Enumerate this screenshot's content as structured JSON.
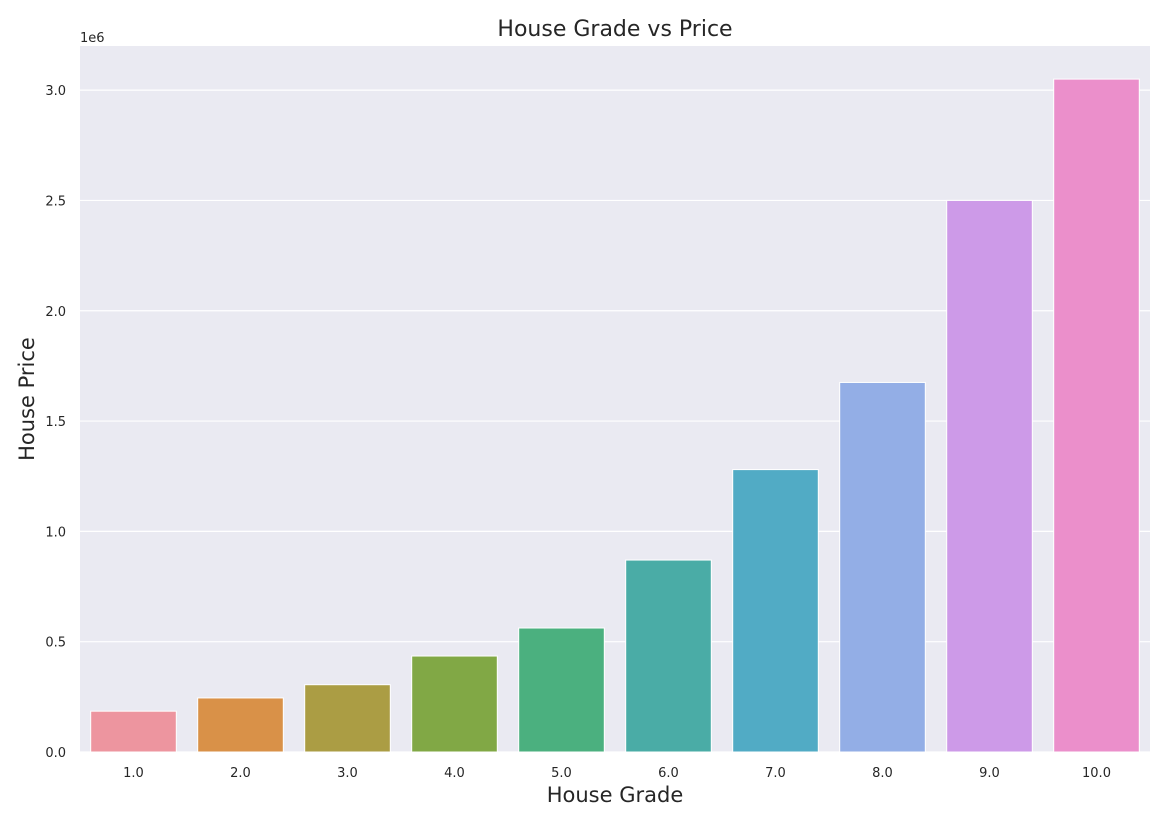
{
  "chart_data": {
    "type": "bar",
    "title": "House Grade vs Price",
    "xlabel": "House Grade",
    "ylabel": "House Price",
    "y_offset_label": "1e6",
    "categories": [
      "1.0",
      "2.0",
      "3.0",
      "4.0",
      "5.0",
      "6.0",
      "7.0",
      "8.0",
      "9.0",
      "10.0"
    ],
    "values": [
      185000,
      245000,
      305000,
      435000,
      562000,
      870000,
      1280000,
      1675000,
      2500000,
      3050000
    ],
    "ylim": [
      0,
      3200000
    ],
    "yticks": [
      0,
      500000,
      1000000,
      1500000,
      2000000,
      2500000,
      3000000
    ],
    "ytick_labels": [
      "0.0",
      "0.5",
      "1.0",
      "1.5",
      "2.0",
      "2.5",
      "3.0"
    ],
    "grid": true,
    "background": "#eaeaf2",
    "colors": [
      "#ed959f",
      "#d99148",
      "#ab9d44",
      "#81a845",
      "#4bb07f",
      "#4aaca6",
      "#51abc5",
      "#93aee6",
      "#cd9ae8",
      "#eb8fcb"
    ]
  }
}
